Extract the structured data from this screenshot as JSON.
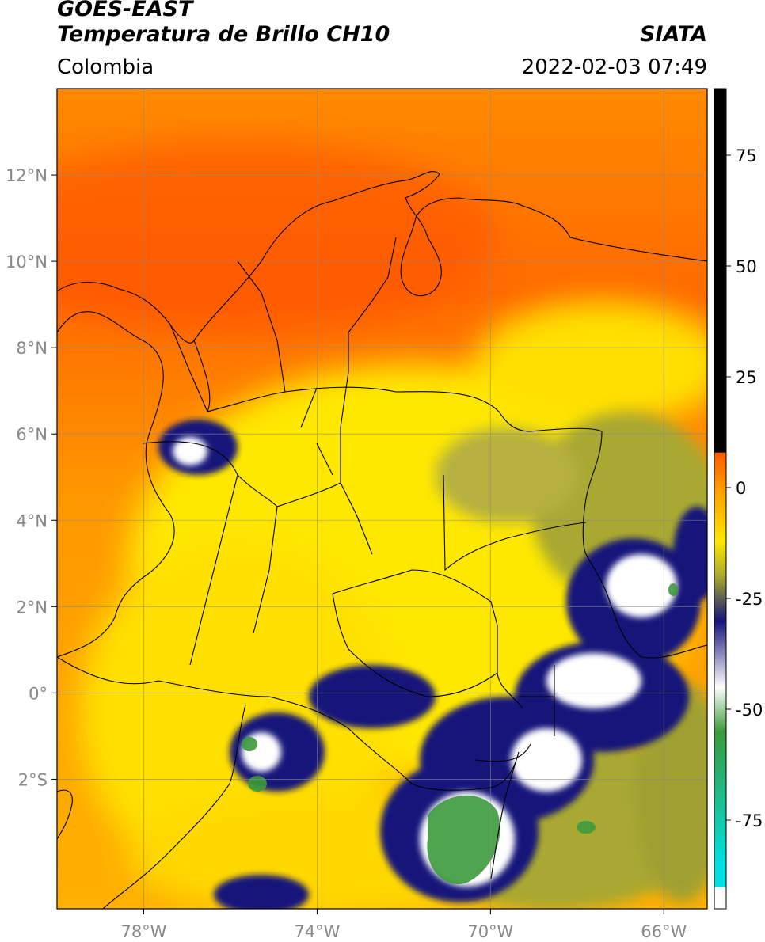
{
  "header": {
    "satellite": "GOES-EAST",
    "product": "Temperatura de Brillo CH10",
    "region": "Colombia",
    "agency": "SIATA",
    "datetime": "2022-02-03 07:49"
  },
  "map": {
    "lon_range": [
      -80,
      -65
    ],
    "lat_range": [
      -5,
      14
    ],
    "lon_ticks": [
      {
        "value": -78,
        "label": "78°W"
      },
      {
        "value": -74,
        "label": "74°W"
      },
      {
        "value": -70,
        "label": "70°W"
      },
      {
        "value": -66,
        "label": "66°W"
      }
    ],
    "lat_ticks": [
      {
        "value": 12,
        "label": "12°N"
      },
      {
        "value": 10,
        "label": "10°N"
      },
      {
        "value": 8,
        "label": "8°N"
      },
      {
        "value": 6,
        "label": "6°N"
      },
      {
        "value": 4,
        "label": "4°N"
      },
      {
        "value": 2,
        "label": "2°N"
      },
      {
        "value": 0,
        "label": "0°"
      },
      {
        "value": -2,
        "label": "2°S"
      }
    ],
    "grid": true
  },
  "colorbar": {
    "range": [
      -95,
      90
    ],
    "ticks": [
      {
        "value": 75,
        "label": "75"
      },
      {
        "value": 50,
        "label": "50"
      },
      {
        "value": 25,
        "label": "25"
      },
      {
        "value": 0,
        "label": "0"
      },
      {
        "value": -25,
        "label": "-25"
      },
      {
        "value": -50,
        "label": "-50"
      },
      {
        "value": -75,
        "label": "-75"
      }
    ],
    "colors": {
      "warm_red": "#ff5a00",
      "orange": "#ff9a00",
      "yellow": "#ffe800",
      "olive": "#a8a830",
      "navy": "#15157a",
      "white": "#ffffff",
      "green": "#3c9a3c",
      "cyan": "#00e0e0",
      "black": "#000000"
    }
  }
}
